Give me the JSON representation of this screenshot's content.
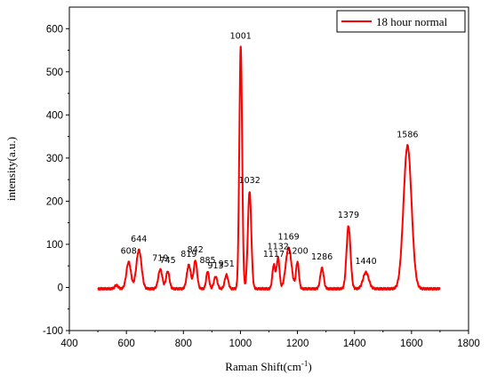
{
  "chart_data": {
    "type": "line",
    "title": "",
    "xlabel_main": "Raman Shift(cm",
    "xlabel_sup": "-1",
    "xlabel_tail": ")",
    "ylabel": "intensity(a.u.)",
    "xlim": [
      400,
      1800
    ],
    "ylim": [
      -100,
      650
    ],
    "x_ticks": [
      400,
      600,
      800,
      1000,
      1200,
      1400,
      1600,
      1800
    ],
    "y_ticks": [
      -100,
      0,
      100,
      200,
      300,
      400,
      500,
      600
    ],
    "grid": false,
    "legend_position": "top-right",
    "series": [
      {
        "name": "18 hour normal",
        "color": "#ff0000",
        "x_range": [
          500,
          1700
        ],
        "baseline": -3,
        "peaks": [
          {
            "x": 565,
            "height": 8,
            "width": 6
          },
          {
            "x": 608,
            "height": 62,
            "width": 8
          },
          {
            "x": 644,
            "height": 90,
            "width": 9
          },
          {
            "x": 719,
            "height": 45,
            "width": 7
          },
          {
            "x": 745,
            "height": 40,
            "width": 6
          },
          {
            "x": 819,
            "height": 55,
            "width": 7
          },
          {
            "x": 842,
            "height": 65,
            "width": 6
          },
          {
            "x": 885,
            "height": 40,
            "width": 5
          },
          {
            "x": 913,
            "height": 28,
            "width": 6
          },
          {
            "x": 951,
            "height": 32,
            "width": 6
          },
          {
            "x": 1001,
            "height": 560,
            "width": 5
          },
          {
            "x": 1032,
            "height": 226,
            "width": 6
          },
          {
            "x": 1117,
            "height": 55,
            "width": 5
          },
          {
            "x": 1132,
            "height": 72,
            "width": 5
          },
          {
            "x": 1169,
            "height": 95,
            "width": 10
          },
          {
            "x": 1200,
            "height": 62,
            "width": 5
          },
          {
            "x": 1286,
            "height": 48,
            "width": 6
          },
          {
            "x": 1379,
            "height": 145,
            "width": 7
          },
          {
            "x": 1440,
            "height": 38,
            "width": 10
          },
          {
            "x": 1586,
            "height": 332,
            "width": 14
          }
        ]
      }
    ],
    "annotations": [
      {
        "text": "608",
        "x": 608,
        "y": 62
      },
      {
        "text": "644",
        "x": 644,
        "y": 90
      },
      {
        "text": "719",
        "x": 719,
        "y": 45
      },
      {
        "text": "745",
        "x": 745,
        "y": 40
      },
      {
        "text": "819",
        "x": 819,
        "y": 55
      },
      {
        "text": "842",
        "x": 842,
        "y": 65
      },
      {
        "text": "885",
        "x": 885,
        "y": 40
      },
      {
        "text": "913",
        "x": 913,
        "y": 28
      },
      {
        "text": "951",
        "x": 951,
        "y": 32
      },
      {
        "text": "1001",
        "x": 1001,
        "y": 560
      },
      {
        "text": "1032",
        "x": 1032,
        "y": 226
      },
      {
        "text": "1117",
        "x": 1117,
        "y": 55
      },
      {
        "text": "1132",
        "x": 1132,
        "y": 72
      },
      {
        "text": "1169",
        "x": 1169,
        "y": 95
      },
      {
        "text": "1200",
        "x": 1200,
        "y": 62
      },
      {
        "text": "1286",
        "x": 1286,
        "y": 48
      },
      {
        "text": "1379",
        "x": 1379,
        "y": 145
      },
      {
        "text": "1440",
        "x": 1440,
        "y": 38
      },
      {
        "text": "1586",
        "x": 1586,
        "y": 332
      }
    ]
  }
}
